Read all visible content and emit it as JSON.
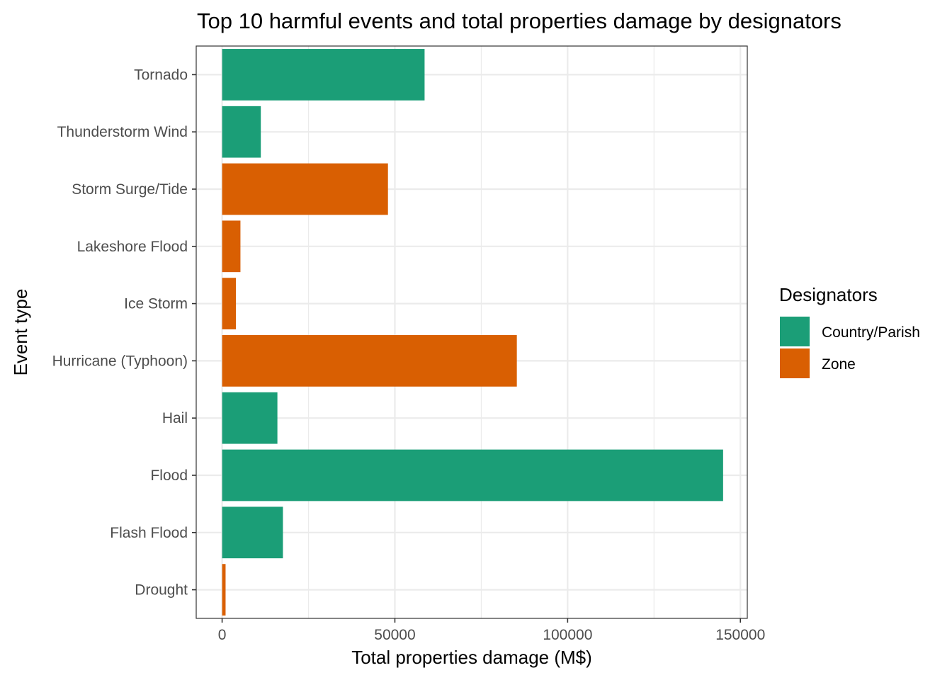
{
  "chart_data": {
    "type": "bar",
    "orientation": "horizontal",
    "title": "Top 10 harmful events and total properties damage by designators",
    "xlabel": "Total properties damage (M$)",
    "ylabel": "Event type",
    "xlim": [
      -7500,
      152000
    ],
    "xticks": [
      0,
      50000,
      100000,
      150000
    ],
    "xtick_labels": [
      "0",
      "50000",
      "100000",
      "150000"
    ],
    "grid": true,
    "legend": {
      "title": "Designators",
      "placement": "right",
      "entries": [
        {
          "name": "Country/Parish",
          "color": "#1b9e77"
        },
        {
          "name": "Zone",
          "color": "#d95f02"
        }
      ]
    },
    "categories": [
      "Tornado",
      "Thunderstorm Wind",
      "Storm Surge/Tide",
      "Lakeshore Flood",
      "Ice Storm",
      "Hurricane (Typhoon)",
      "Hail",
      "Flood",
      "Flash Flood",
      "Drought"
    ],
    "values": [
      58600,
      11200,
      48000,
      5300,
      4000,
      85300,
      16000,
      145000,
      17600,
      1000
    ],
    "designators": [
      "Country/Parish",
      "Country/Parish",
      "Zone",
      "Zone",
      "Zone",
      "Zone",
      "Country/Parish",
      "Country/Parish",
      "Country/Parish",
      "Zone"
    ]
  }
}
